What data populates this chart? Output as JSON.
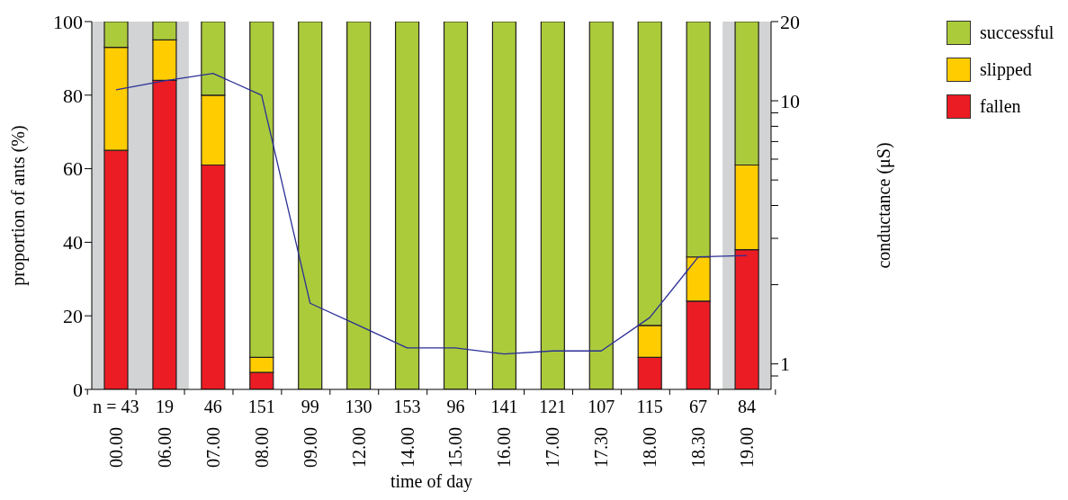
{
  "chart_data": {
    "type": "bar",
    "stacked": true,
    "xlabel": "time of day",
    "ylabel": "proportion of ants (%)",
    "y2label": "conductance (μS)",
    "categories": [
      "00.00",
      "06.00",
      "07.00",
      "08.00",
      "09.00",
      "12.00",
      "14.00",
      "15.00",
      "16.00",
      "17.00",
      "17.30",
      "18.00",
      "18.30",
      "19.00"
    ],
    "series": [
      {
        "name": "fallen",
        "color": "#ec1c24",
        "values": [
          65,
          84,
          61,
          4.6,
          0,
          0,
          0,
          0,
          0,
          0,
          0,
          8.7,
          24,
          38
        ]
      },
      {
        "name": "slipped",
        "color": "#ffcc00",
        "values": [
          28,
          11,
          19,
          4.1,
          0,
          0,
          0,
          0,
          0,
          0,
          0,
          8.7,
          12,
          23
        ]
      },
      {
        "name": "successful",
        "color": "#abcb3b",
        "values": [
          7,
          5,
          20,
          91.3,
          100,
          100,
          100,
          100,
          100,
          100,
          100,
          82.6,
          64,
          39
        ]
      },
      {
        "type": "line",
        "axis": "y2",
        "color": "#2b2f96",
        "values": [
          11.0,
          11.9,
          12.7,
          10.5,
          1.7,
          1.4,
          1.15,
          1.15,
          1.09,
          1.12,
          1.12,
          1.5,
          2.55,
          2.58
        ]
      }
    ],
    "ylim": [
      0,
      100
    ],
    "yticks": [
      0,
      20,
      40,
      60,
      80,
      100
    ],
    "y2lim": [
      0.8,
      20
    ],
    "y2ticks": [
      {
        "value": 0.9,
        "label": null
      },
      1,
      {
        "value": 2,
        "label": null
      },
      {
        "value": 3,
        "label": null
      },
      {
        "value": 4,
        "label": null
      },
      {
        "value": 5,
        "label": null
      },
      {
        "value": 6,
        "label": null
      },
      {
        "value": 7,
        "label": null
      },
      {
        "value": 8,
        "label": null
      },
      {
        "value": 9,
        "label": null
      },
      10,
      20
    ],
    "log": "y2",
    "bands": [
      {
        "axis": "x",
        "from": "00.00",
        "to": "06.00",
        "color": "#d1d3d4"
      },
      {
        "axis": "x",
        "from": "19.00",
        "to": "19.00",
        "color": "#d1d3d4"
      }
    ],
    "annotations": [
      "n = 43",
      "19",
      "46",
      "151",
      "99",
      "130",
      "153",
      "96",
      "141",
      "121",
      "107",
      "115",
      "67",
      "84"
    ],
    "legend": "top right"
  }
}
